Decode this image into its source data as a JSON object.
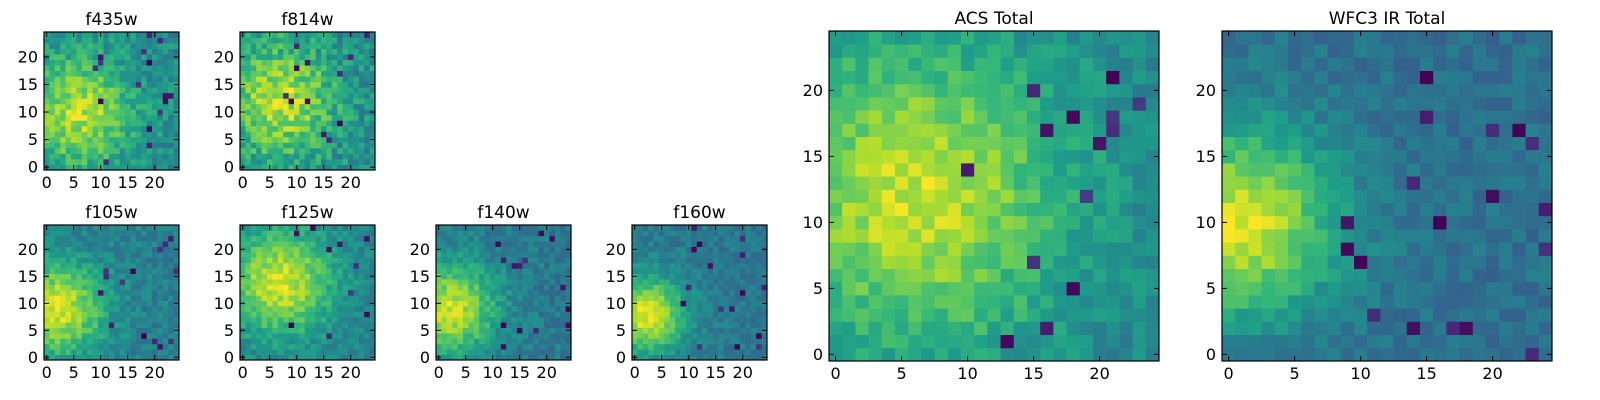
{
  "chart_data": [
    {
      "type": "heatmap",
      "title": "f435w",
      "xlabel": "",
      "ylabel": "",
      "grid_size": 25,
      "xlim": [
        0,
        24
      ],
      "ylim": [
        0,
        24
      ],
      "xticks": [
        0,
        5,
        10,
        15,
        20
      ],
      "yticks": [
        0,
        5,
        10,
        15,
        20
      ],
      "colormap": "viridis",
      "noise_level": 0.7,
      "blob_strength": 0.55,
      "blob_center": [
        6,
        10
      ],
      "blob_width": 7,
      "seed": 11,
      "dark_pixels": 16
    },
    {
      "type": "heatmap",
      "title": "f814w",
      "xlabel": "",
      "ylabel": "",
      "grid_size": 25,
      "xlim": [
        0,
        24
      ],
      "ylim": [
        0,
        24
      ],
      "xticks": [
        0,
        5,
        10,
        15,
        20
      ],
      "yticks": [
        0,
        5,
        10,
        15,
        20
      ],
      "colormap": "viridis",
      "noise_level": 0.75,
      "blob_strength": 0.5,
      "blob_center": [
        7,
        12
      ],
      "blob_width": 7,
      "seed": 23,
      "dark_pixels": 12
    },
    {
      "type": "heatmap",
      "title": "f105w",
      "xlabel": "",
      "ylabel": "",
      "grid_size": 25,
      "xlim": [
        0,
        24
      ],
      "ylim": [
        0,
        24
      ],
      "xticks": [
        0,
        5,
        10,
        15,
        20
      ],
      "yticks": [
        0,
        5,
        10,
        15,
        20
      ],
      "colormap": "viridis",
      "noise_level": 0.55,
      "blob_strength": 0.7,
      "blob_center": [
        2,
        9
      ],
      "blob_width": 6,
      "seed": 37,
      "dark_pixels": 14
    },
    {
      "type": "heatmap",
      "title": "f125w",
      "xlabel": "",
      "ylabel": "",
      "grid_size": 25,
      "xlim": [
        0,
        24
      ],
      "ylim": [
        0,
        24
      ],
      "xticks": [
        0,
        5,
        10,
        15,
        20
      ],
      "yticks": [
        0,
        5,
        10,
        15,
        20
      ],
      "colormap": "viridis",
      "noise_level": 0.55,
      "blob_strength": 0.7,
      "blob_center": [
        7,
        14
      ],
      "blob_width": 7,
      "seed": 41,
      "dark_pixels": 10
    },
    {
      "type": "heatmap",
      "title": "f140w",
      "xlabel": "",
      "ylabel": "",
      "grid_size": 25,
      "xlim": [
        0,
        24
      ],
      "ylim": [
        0,
        24
      ],
      "xticks": [
        0,
        5,
        10,
        15,
        20
      ],
      "yticks": [
        0,
        5,
        10,
        15,
        20
      ],
      "colormap": "viridis",
      "noise_level": 0.55,
      "blob_strength": 0.7,
      "blob_center": [
        2,
        9
      ],
      "blob_width": 6,
      "seed": 53,
      "dark_pixels": 14
    },
    {
      "type": "heatmap",
      "title": "f160w",
      "xlabel": "",
      "ylabel": "",
      "grid_size": 25,
      "xlim": [
        0,
        24
      ],
      "ylim": [
        0,
        24
      ],
      "xticks": [
        0,
        5,
        10,
        15,
        20
      ],
      "yticks": [
        0,
        5,
        10,
        15,
        20
      ],
      "colormap": "viridis",
      "noise_level": 0.5,
      "blob_strength": 0.8,
      "blob_center": [
        2,
        8
      ],
      "blob_width": 5,
      "seed": 67,
      "dark_pixels": 16
    },
    {
      "type": "heatmap",
      "title": "ACS Total",
      "xlabel": "",
      "ylabel": "",
      "grid_size": 25,
      "xlim": [
        0,
        24
      ],
      "ylim": [
        0,
        24
      ],
      "xticks": [
        0,
        5,
        10,
        15,
        20
      ],
      "yticks": [
        0,
        5,
        10,
        15,
        20
      ],
      "colormap": "viridis",
      "noise_level": 0.5,
      "blob_strength": 0.6,
      "blob_center": [
        6,
        12
      ],
      "blob_width": 8,
      "seed": 79,
      "dark_pixels": 14
    },
    {
      "type": "heatmap",
      "title": "WFC3 IR Total",
      "xlabel": "",
      "ylabel": "",
      "grid_size": 25,
      "xlim": [
        0,
        24
      ],
      "ylim": [
        0,
        24
      ],
      "xticks": [
        0,
        5,
        10,
        15,
        20
      ],
      "yticks": [
        0,
        5,
        10,
        15,
        20
      ],
      "colormap": "viridis",
      "noise_level": 0.45,
      "blob_strength": 0.85,
      "blob_center": [
        1,
        10
      ],
      "blob_width": 5,
      "seed": 97,
      "dark_pixels": 18
    }
  ]
}
